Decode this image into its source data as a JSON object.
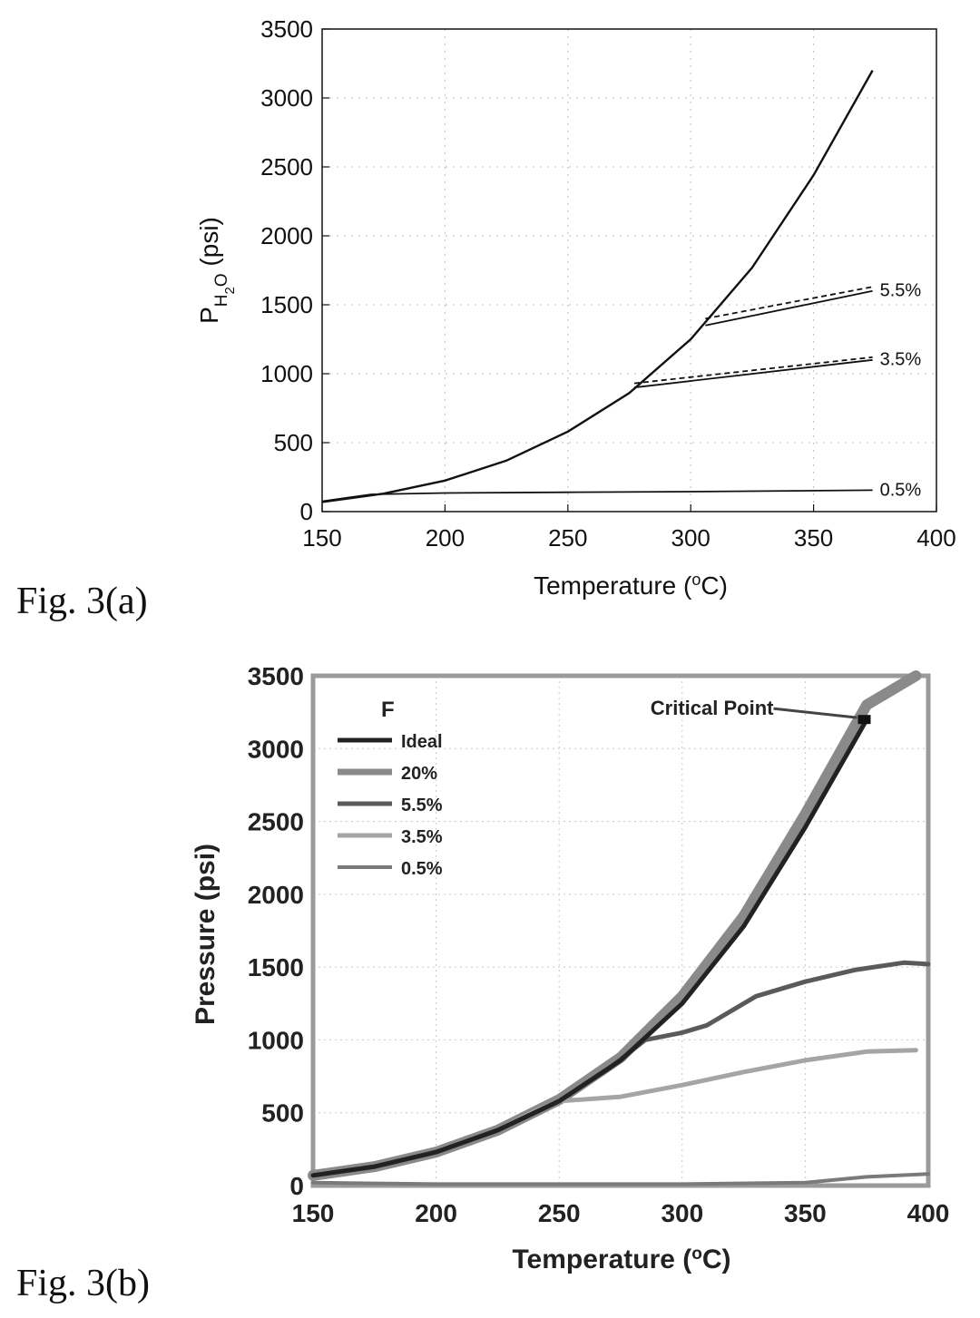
{
  "figure_labels": [
    "Fig. 3(a)",
    "Fig. 3(b)"
  ],
  "chart_data": [
    {
      "type": "line",
      "xlabel": "Temperature (°C)",
      "ylabel": "P_H2O (psi)",
      "xlim": [
        150,
        400
      ],
      "ylim": [
        0,
        3500
      ],
      "xticks": [
        "150",
        "200",
        "250",
        "300",
        "350",
        "400"
      ],
      "yticks": [
        "0",
        "500",
        "1000",
        "1500",
        "2000",
        "2500",
        "3000",
        "3500"
      ],
      "grid": true,
      "series": [
        {
          "x": [
            150,
            175,
            200,
            225,
            250,
            275,
            300,
            325,
            350,
            374
          ],
          "y": [
            70,
            130,
            225,
            370,
            580,
            860,
            1250,
            1770,
            2440,
            3200
          ],
          "style": "solid",
          "width": 2.4
        },
        {
          "name": "5.5%",
          "x": [
            306,
            374
          ],
          "y": [
            1350,
            1600
          ],
          "style": "solid",
          "width": 1.8
        },
        {
          "x": [
            306,
            374
          ],
          "y": [
            1400,
            1630
          ],
          "style": "dashed",
          "width": 1.8
        },
        {
          "name": "3.5%",
          "x": [
            277,
            374
          ],
          "y": [
            900,
            1100
          ],
          "style": "solid",
          "width": 1.8
        },
        {
          "x": [
            277,
            374
          ],
          "y": [
            930,
            1120
          ],
          "style": "dashed",
          "width": 1.8
        },
        {
          "name": "0.5%",
          "x": [
            150,
            170,
            200,
            250,
            300,
            374
          ],
          "y": [
            75,
            125,
            135,
            140,
            145,
            155
          ],
          "style": "solid",
          "width": 1.8
        }
      ],
      "annotations": [
        "5.5%",
        "3.5%",
        "0.5%"
      ]
    },
    {
      "type": "line",
      "xlabel": "Temperature (°C)",
      "ylabel": "Pressure (psi)",
      "xlim": [
        150,
        400
      ],
      "ylim": [
        0,
        3500
      ],
      "xticks": [
        "150",
        "200",
        "250",
        "300",
        "350",
        "400"
      ],
      "yticks": [
        "0",
        "500",
        "1000",
        "1500",
        "2000",
        "2500",
        "3000",
        "3500"
      ],
      "grid": true,
      "legend_title": "F",
      "legend_placement": "top-left",
      "annotation": "Critical Point",
      "critical_point": [
        374,
        3200
      ],
      "series": [
        {
          "name": "Ideal",
          "color": "#222222",
          "width": 5,
          "x": [
            150,
            175,
            200,
            225,
            250,
            275,
            300,
            325,
            350,
            375
          ],
          "y": [
            70,
            130,
            230,
            380,
            580,
            860,
            1250,
            1780,
            2460,
            3200
          ]
        },
        {
          "name": "20%",
          "color": "#8a8a8a",
          "width": 12,
          "x": [
            150,
            175,
            200,
            225,
            250,
            275,
            300,
            325,
            350,
            375,
            395
          ],
          "y": [
            70,
            130,
            230,
            380,
            590,
            880,
            1300,
            1850,
            2550,
            3300,
            3500
          ]
        },
        {
          "name": "5.5%",
          "color": "#5a5a5a",
          "width": 5,
          "x": [
            150,
            175,
            200,
            225,
            250,
            270,
            285,
            300,
            310,
            330,
            350,
            370,
            390,
            400
          ],
          "y": [
            70,
            130,
            230,
            380,
            580,
            800,
            1000,
            1050,
            1100,
            1300,
            1400,
            1480,
            1530,
            1520
          ]
        },
        {
          "name": "3.5%",
          "color": "#a5a5a5",
          "width": 5,
          "x": [
            150,
            175,
            200,
            225,
            240,
            250,
            275,
            300,
            325,
            350,
            375,
            395
          ],
          "y": [
            70,
            130,
            230,
            380,
            510,
            580,
            610,
            690,
            780,
            860,
            920,
            930
          ]
        },
        {
          "name": "0.5%",
          "color": "#7a7a7a",
          "width": 4,
          "x": [
            150,
            200,
            250,
            300,
            350,
            375,
            400
          ],
          "y": [
            20,
            10,
            10,
            10,
            20,
            60,
            80
          ]
        }
      ]
    }
  ]
}
